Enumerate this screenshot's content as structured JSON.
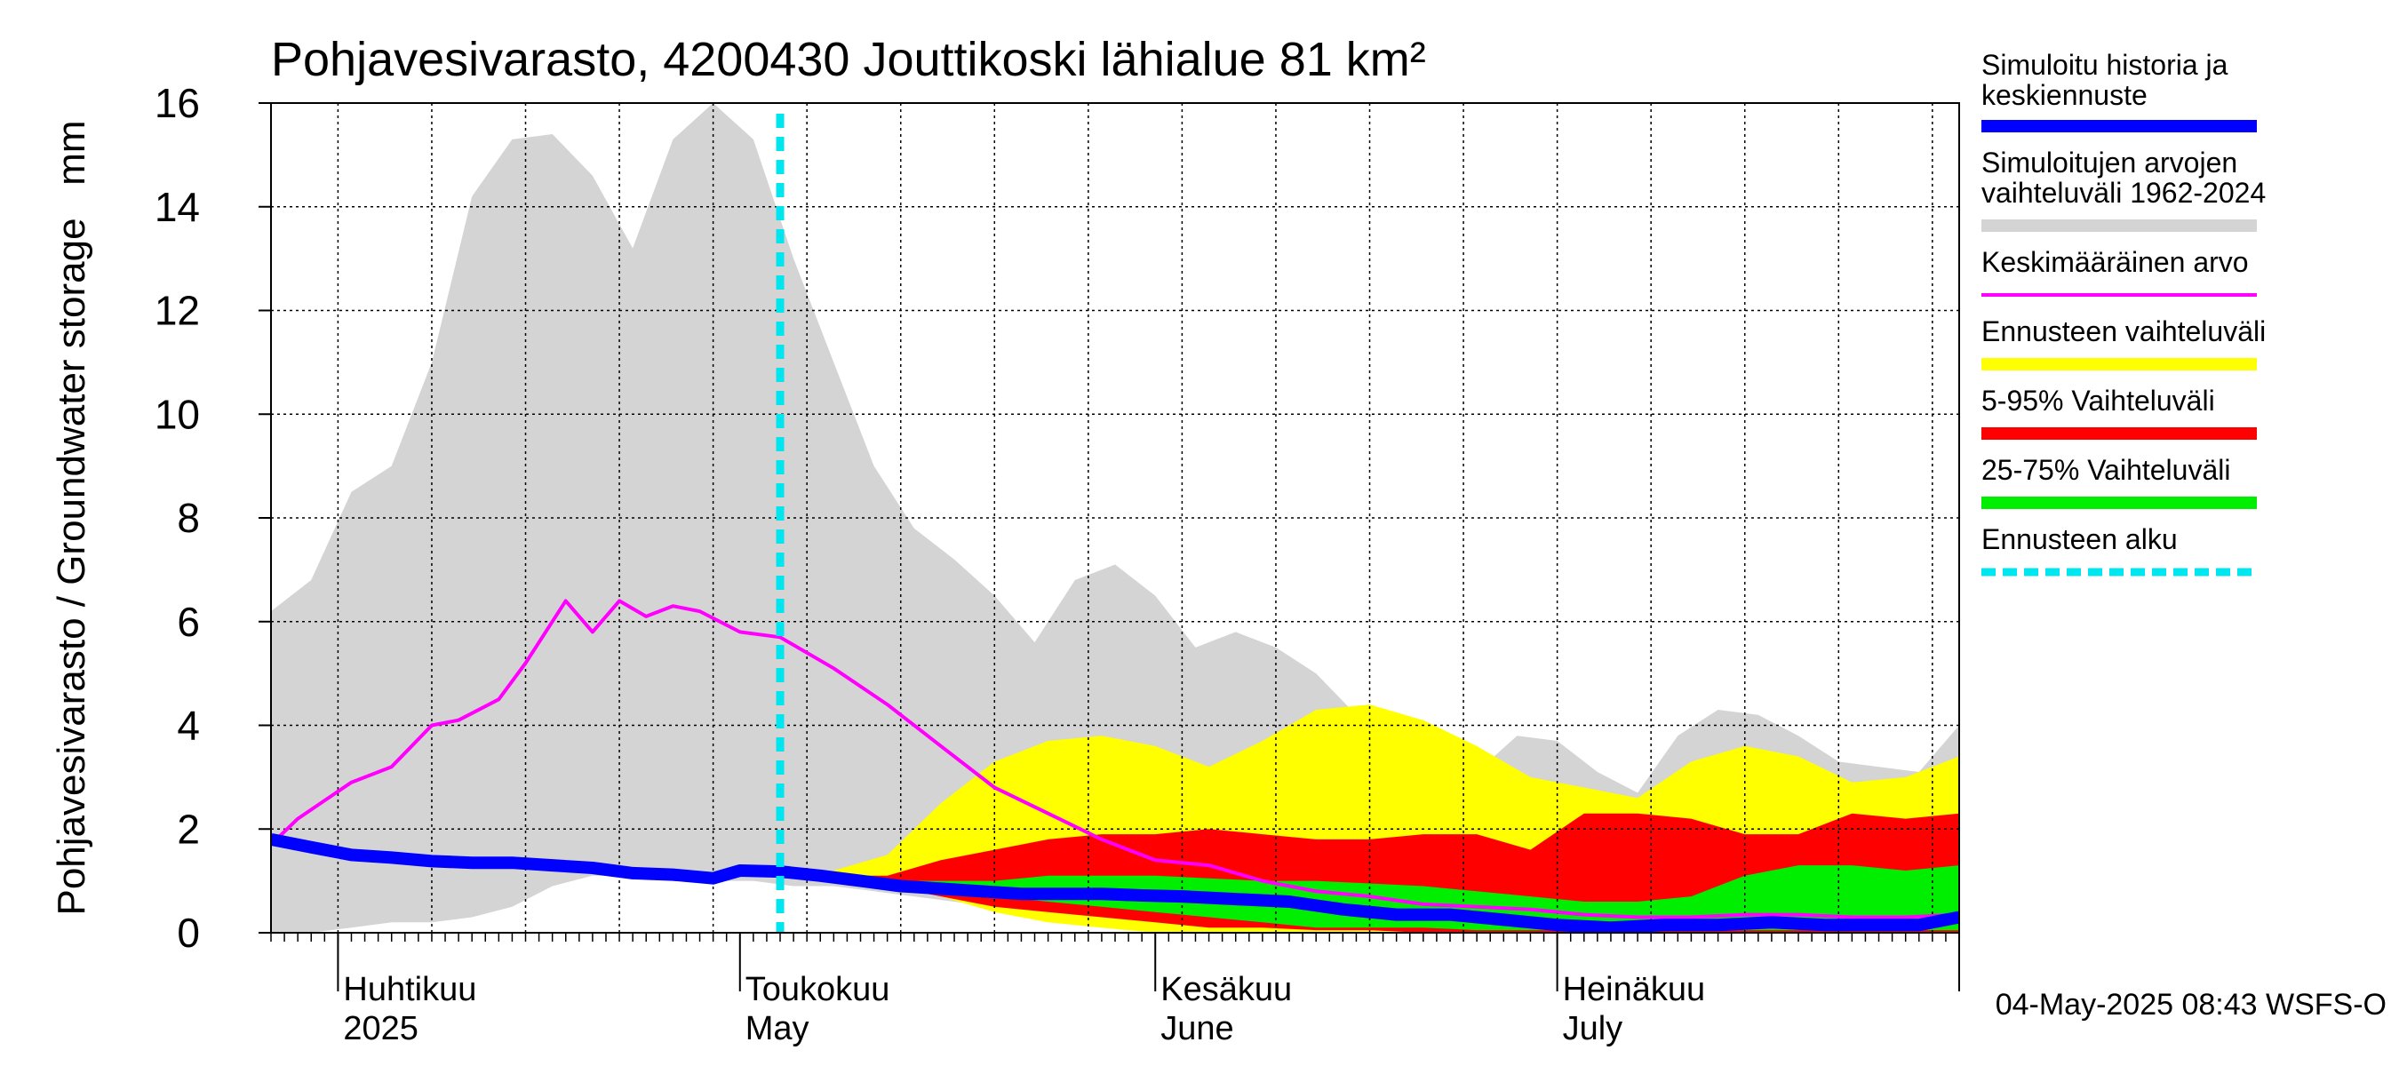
{
  "chart_data": {
    "type": "area",
    "title": "Pohjavesivarasto, 4200430 Jouttikoski lähialue 81 km²",
    "ylabel": "Pohjavesivarasto / Groundwater storage   mm",
    "ylim": [
      0,
      16
    ],
    "yticks": [
      0,
      2,
      4,
      6,
      8,
      10,
      12,
      14,
      16
    ],
    "grid": true,
    "legend_position": "right",
    "x_range": [
      "2025-03-27",
      "2025-07-31"
    ],
    "forecast_start": "2025-05-04",
    "month_labels": [
      {
        "fi": "Huhtikuu",
        "en": "2025",
        "date": "2025-04-01"
      },
      {
        "fi": "Toukokuu",
        "en": "May",
        "date": "2025-05-01"
      },
      {
        "fi": "Kesäkuu",
        "en": "June",
        "date": "2025-06-01"
      },
      {
        "fi": "Heinäkuu",
        "en": "July",
        "date": "2025-07-01"
      }
    ],
    "footer": "04-May-2025 08:43 WSFS-O",
    "legend": [
      {
        "label": "Simuloitu historia ja keskiennuste",
        "color": "#0000ff",
        "style": "thick"
      },
      {
        "label": "Simuloitujen arvojen vaihteluväli 1962-2024",
        "color": "#d4d4d4",
        "style": "thick"
      },
      {
        "label": "Keskimääräinen arvo",
        "color": "#ff00ff",
        "style": "thin"
      },
      {
        "label": "Ennusteen vaihteluväli",
        "color": "#ffff00",
        "style": "thick"
      },
      {
        "label": "5-95% Vaihteluväli",
        "color": "#ff0000",
        "style": "thick"
      },
      {
        "label": "25-75% Vaihteluväli",
        "color": "#00ee00",
        "style": "thick"
      },
      {
        "label": "Ennusteen alku",
        "color": "#00e5ee",
        "style": "dashed"
      }
    ],
    "series": [
      {
        "name": "Simuloitujen arvojen vaihteluväli 1962-2024",
        "kind": "band",
        "color": "#d4d4d4",
        "x": [
          "2025-03-27",
          "2025-03-30",
          "2025-04-02",
          "2025-04-05",
          "2025-04-08",
          "2025-04-11",
          "2025-04-14",
          "2025-04-17",
          "2025-04-20",
          "2025-04-23",
          "2025-04-26",
          "2025-04-29",
          "2025-05-02",
          "2025-05-05",
          "2025-05-08",
          "2025-05-11",
          "2025-05-14",
          "2025-05-17",
          "2025-05-20",
          "2025-05-23",
          "2025-05-26",
          "2025-05-29",
          "2025-06-01",
          "2025-06-04",
          "2025-06-07",
          "2025-06-10",
          "2025-06-13",
          "2025-06-16",
          "2025-06-19",
          "2025-06-22",
          "2025-06-25",
          "2025-06-28",
          "2025-07-01",
          "2025-07-04",
          "2025-07-07",
          "2025-07-10",
          "2025-07-13",
          "2025-07-16",
          "2025-07-19",
          "2025-07-22",
          "2025-07-25",
          "2025-07-28",
          "2025-07-31"
        ],
        "low": [
          0.0,
          0.0,
          0.1,
          0.2,
          0.2,
          0.3,
          0.5,
          0.9,
          1.1,
          1.1,
          1.1,
          1.0,
          1.0,
          0.9,
          0.9,
          0.8,
          0.7,
          0.6,
          0.5,
          0.4,
          0.3,
          0.2,
          0.1,
          0.1,
          0.1,
          0.1,
          0.1,
          0.1,
          0.0,
          0.0,
          0.0,
          0.0,
          0.0,
          0.0,
          0.0,
          0.0,
          0.0,
          0.0,
          0.0,
          0.0,
          0.0,
          0.0,
          0.0
        ],
        "high": [
          6.2,
          6.8,
          8.5,
          9.0,
          11.0,
          14.2,
          15.3,
          15.4,
          14.6,
          13.2,
          15.3,
          16.0,
          15.3,
          13.0,
          11.0,
          9.0,
          7.8,
          7.2,
          6.5,
          5.6,
          6.8,
          7.1,
          6.5,
          5.5,
          5.8,
          5.5,
          5.0,
          4.2,
          3.6,
          3.2,
          3.1,
          3.8,
          3.7,
          3.1,
          2.7,
          3.8,
          4.3,
          4.2,
          3.8,
          3.3,
          3.2,
          3.1,
          4.0
        ]
      },
      {
        "name": "Ennusteen vaihteluväli",
        "kind": "band",
        "color": "#ffff00",
        "x": [
          "2025-05-04",
          "2025-05-08",
          "2025-05-12",
          "2025-05-16",
          "2025-05-20",
          "2025-05-24",
          "2025-05-28",
          "2025-06-01",
          "2025-06-05",
          "2025-06-09",
          "2025-06-13",
          "2025-06-17",
          "2025-06-21",
          "2025-06-25",
          "2025-06-29",
          "2025-07-03",
          "2025-07-07",
          "2025-07-11",
          "2025-07-15",
          "2025-07-19",
          "2025-07-23",
          "2025-07-27",
          "2025-07-31"
        ],
        "low": [
          1.1,
          1.0,
          0.9,
          0.7,
          0.4,
          0.2,
          0.1,
          0.0,
          0.0,
          0.0,
          0.0,
          0.0,
          0.0,
          0.0,
          0.0,
          0.0,
          0.0,
          0.0,
          0.0,
          0.0,
          0.0,
          0.0,
          0.0
        ],
        "high": [
          1.2,
          1.2,
          1.5,
          2.5,
          3.3,
          3.7,
          3.8,
          3.6,
          3.2,
          3.7,
          4.3,
          4.4,
          4.1,
          3.6,
          3.0,
          2.8,
          2.6,
          3.3,
          3.6,
          3.4,
          2.9,
          3.0,
          3.4
        ]
      },
      {
        "name": "5-95% Vaihteluväli",
        "kind": "band",
        "color": "#ff0000",
        "x": [
          "2025-05-04",
          "2025-05-08",
          "2025-05-12",
          "2025-05-16",
          "2025-05-20",
          "2025-05-24",
          "2025-05-28",
          "2025-06-01",
          "2025-06-05",
          "2025-06-09",
          "2025-06-13",
          "2025-06-17",
          "2025-06-21",
          "2025-06-25",
          "2025-06-29",
          "2025-07-03",
          "2025-07-07",
          "2025-07-11",
          "2025-07-15",
          "2025-07-19",
          "2025-07-23",
          "2025-07-27",
          "2025-07-31"
        ],
        "low": [
          1.1,
          1.0,
          0.9,
          0.7,
          0.5,
          0.4,
          0.3,
          0.2,
          0.1,
          0.1,
          0.05,
          0.05,
          0.0,
          0.0,
          0.0,
          0.0,
          0.0,
          0.0,
          0.0,
          0.0,
          0.0,
          0.0,
          0.0
        ],
        "high": [
          1.15,
          1.1,
          1.1,
          1.4,
          1.6,
          1.8,
          1.9,
          1.9,
          2.0,
          1.9,
          1.8,
          1.8,
          1.9,
          1.9,
          1.6,
          2.3,
          2.3,
          2.2,
          1.9,
          1.9,
          2.3,
          2.2,
          2.3
        ]
      },
      {
        "name": "25-75% Vaihteluväli",
        "kind": "band",
        "color": "#00ee00",
        "x": [
          "2025-05-04",
          "2025-05-08",
          "2025-05-12",
          "2025-05-16",
          "2025-05-20",
          "2025-05-24",
          "2025-05-28",
          "2025-06-01",
          "2025-06-05",
          "2025-06-09",
          "2025-06-13",
          "2025-06-17",
          "2025-06-21",
          "2025-06-25",
          "2025-06-29",
          "2025-07-03",
          "2025-07-07",
          "2025-07-11",
          "2025-07-15",
          "2025-07-19",
          "2025-07-23",
          "2025-07-27",
          "2025-07-31"
        ],
        "low": [
          1.1,
          1.0,
          0.9,
          0.8,
          0.7,
          0.6,
          0.5,
          0.4,
          0.3,
          0.2,
          0.1,
          0.1,
          0.1,
          0.05,
          0.05,
          0.05,
          0.05,
          0.05,
          0.05,
          0.05,
          0.05,
          0.05,
          0.05
        ],
        "high": [
          1.15,
          1.1,
          1.0,
          1.0,
          1.0,
          1.1,
          1.1,
          1.1,
          1.05,
          1.0,
          1.0,
          0.95,
          0.9,
          0.8,
          0.7,
          0.6,
          0.6,
          0.7,
          1.1,
          1.3,
          1.3,
          1.2,
          1.3
        ]
      },
      {
        "name": "Keskimääräinen arvo",
        "kind": "line",
        "color": "#ff00ff",
        "x": [
          "2025-03-27",
          "2025-03-29",
          "2025-04-02",
          "2025-04-05",
          "2025-04-08",
          "2025-04-10",
          "2025-04-13",
          "2025-04-15",
          "2025-04-18",
          "2025-04-20",
          "2025-04-22",
          "2025-04-24",
          "2025-04-26",
          "2025-04-28",
          "2025-05-01",
          "2025-05-04",
          "2025-05-08",
          "2025-05-12",
          "2025-05-16",
          "2025-05-20",
          "2025-05-24",
          "2025-05-28",
          "2025-06-01",
          "2025-06-05",
          "2025-06-09",
          "2025-06-13",
          "2025-06-17",
          "2025-06-21",
          "2025-06-25",
          "2025-06-29",
          "2025-07-03",
          "2025-07-07",
          "2025-07-11",
          "2025-07-15",
          "2025-07-19",
          "2025-07-23",
          "2025-07-27",
          "2025-07-31"
        ],
        "y": [
          1.7,
          2.2,
          2.9,
          3.2,
          4.0,
          4.1,
          4.5,
          5.2,
          6.4,
          5.8,
          6.4,
          6.1,
          6.3,
          6.2,
          5.8,
          5.7,
          5.1,
          4.4,
          3.6,
          2.8,
          2.3,
          1.8,
          1.4,
          1.3,
          1.0,
          0.8,
          0.7,
          0.55,
          0.5,
          0.45,
          0.35,
          0.3,
          0.3,
          0.35,
          0.35,
          0.3,
          0.3,
          0.35
        ]
      },
      {
        "name": "Simuloitu historia ja keskiennuste",
        "kind": "line",
        "color": "#0000ff",
        "x": [
          "2025-03-27",
          "2025-03-30",
          "2025-04-02",
          "2025-04-05",
          "2025-04-08",
          "2025-04-11",
          "2025-04-14",
          "2025-04-17",
          "2025-04-20",
          "2025-04-23",
          "2025-04-26",
          "2025-04-29",
          "2025-05-01",
          "2025-05-04",
          "2025-05-07",
          "2025-05-10",
          "2025-05-13",
          "2025-05-16",
          "2025-05-19",
          "2025-05-22",
          "2025-05-25",
          "2025-05-28",
          "2025-05-31",
          "2025-06-03",
          "2025-06-07",
          "2025-06-11",
          "2025-06-15",
          "2025-06-19",
          "2025-06-23",
          "2025-06-27",
          "2025-07-01",
          "2025-07-05",
          "2025-07-09",
          "2025-07-13",
          "2025-07-17",
          "2025-07-21",
          "2025-07-25",
          "2025-07-28",
          "2025-07-31"
        ],
        "y": [
          1.8,
          1.65,
          1.5,
          1.45,
          1.38,
          1.35,
          1.35,
          1.3,
          1.25,
          1.15,
          1.12,
          1.05,
          1.2,
          1.18,
          1.1,
          1.0,
          0.9,
          0.85,
          0.8,
          0.75,
          0.75,
          0.75,
          0.72,
          0.7,
          0.65,
          0.6,
          0.45,
          0.35,
          0.35,
          0.25,
          0.15,
          0.1,
          0.15,
          0.15,
          0.2,
          0.15,
          0.15,
          0.15,
          0.3
        ]
      }
    ]
  }
}
